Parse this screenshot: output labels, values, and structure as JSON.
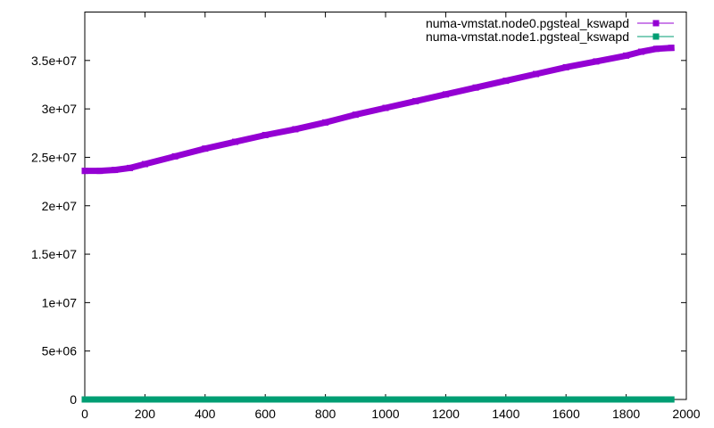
{
  "chart_data": {
    "type": "line",
    "title": "",
    "xlabel": "",
    "ylabel": "",
    "xlim": [
      0,
      2000
    ],
    "ylim": [
      0,
      40000000
    ],
    "x_ticks": [
      {
        "value": 0,
        "label": "0"
      },
      {
        "value": 200,
        "label": "200"
      },
      {
        "value": 400,
        "label": "400"
      },
      {
        "value": 600,
        "label": "600"
      },
      {
        "value": 800,
        "label": "800"
      },
      {
        "value": 1000,
        "label": "1000"
      },
      {
        "value": 1200,
        "label": "1200"
      },
      {
        "value": 1400,
        "label": "1400"
      },
      {
        "value": 1600,
        "label": "1600"
      },
      {
        "value": 1800,
        "label": "1800"
      },
      {
        "value": 2000,
        "label": "2000"
      }
    ],
    "y_ticks": [
      {
        "value": 0,
        "label": "0"
      },
      {
        "value": 5000000,
        "label": "5e+06"
      },
      {
        "value": 10000000,
        "label": "1e+07"
      },
      {
        "value": 15000000,
        "label": "1.5e+07"
      },
      {
        "value": 20000000,
        "label": "2e+07"
      },
      {
        "value": 25000000,
        "label": "2.5e+07"
      },
      {
        "value": 30000000,
        "label": "3e+07"
      },
      {
        "value": 35000000,
        "label": "3.5e+07"
      }
    ],
    "grid": false,
    "legend_position": "top-right",
    "series": [
      {
        "name": "numa-vmstat.node0.pgsteal_kswapd",
        "color": "#9400d3",
        "marker": "square",
        "x": [
          0,
          50,
          100,
          150,
          200,
          300,
          400,
          500,
          600,
          700,
          800,
          900,
          1000,
          1100,
          1200,
          1300,
          1400,
          1500,
          1600,
          1700,
          1800,
          1850,
          1900,
          1950
        ],
        "y": [
          23600000,
          23600000,
          23700000,
          23900000,
          24300000,
          25100000,
          25900000,
          26600000,
          27300000,
          27900000,
          28600000,
          29400000,
          30100000,
          30800000,
          31500000,
          32200000,
          32900000,
          33600000,
          34300000,
          34900000,
          35500000,
          35900000,
          36200000,
          36300000
        ]
      },
      {
        "name": "numa-vmstat.node1.pgsteal_kswapd",
        "color": "#009e73",
        "marker": "square",
        "x": [
          0,
          500,
          1000,
          1500,
          1950
        ],
        "y": [
          0,
          0,
          0,
          0,
          0
        ]
      }
    ]
  }
}
